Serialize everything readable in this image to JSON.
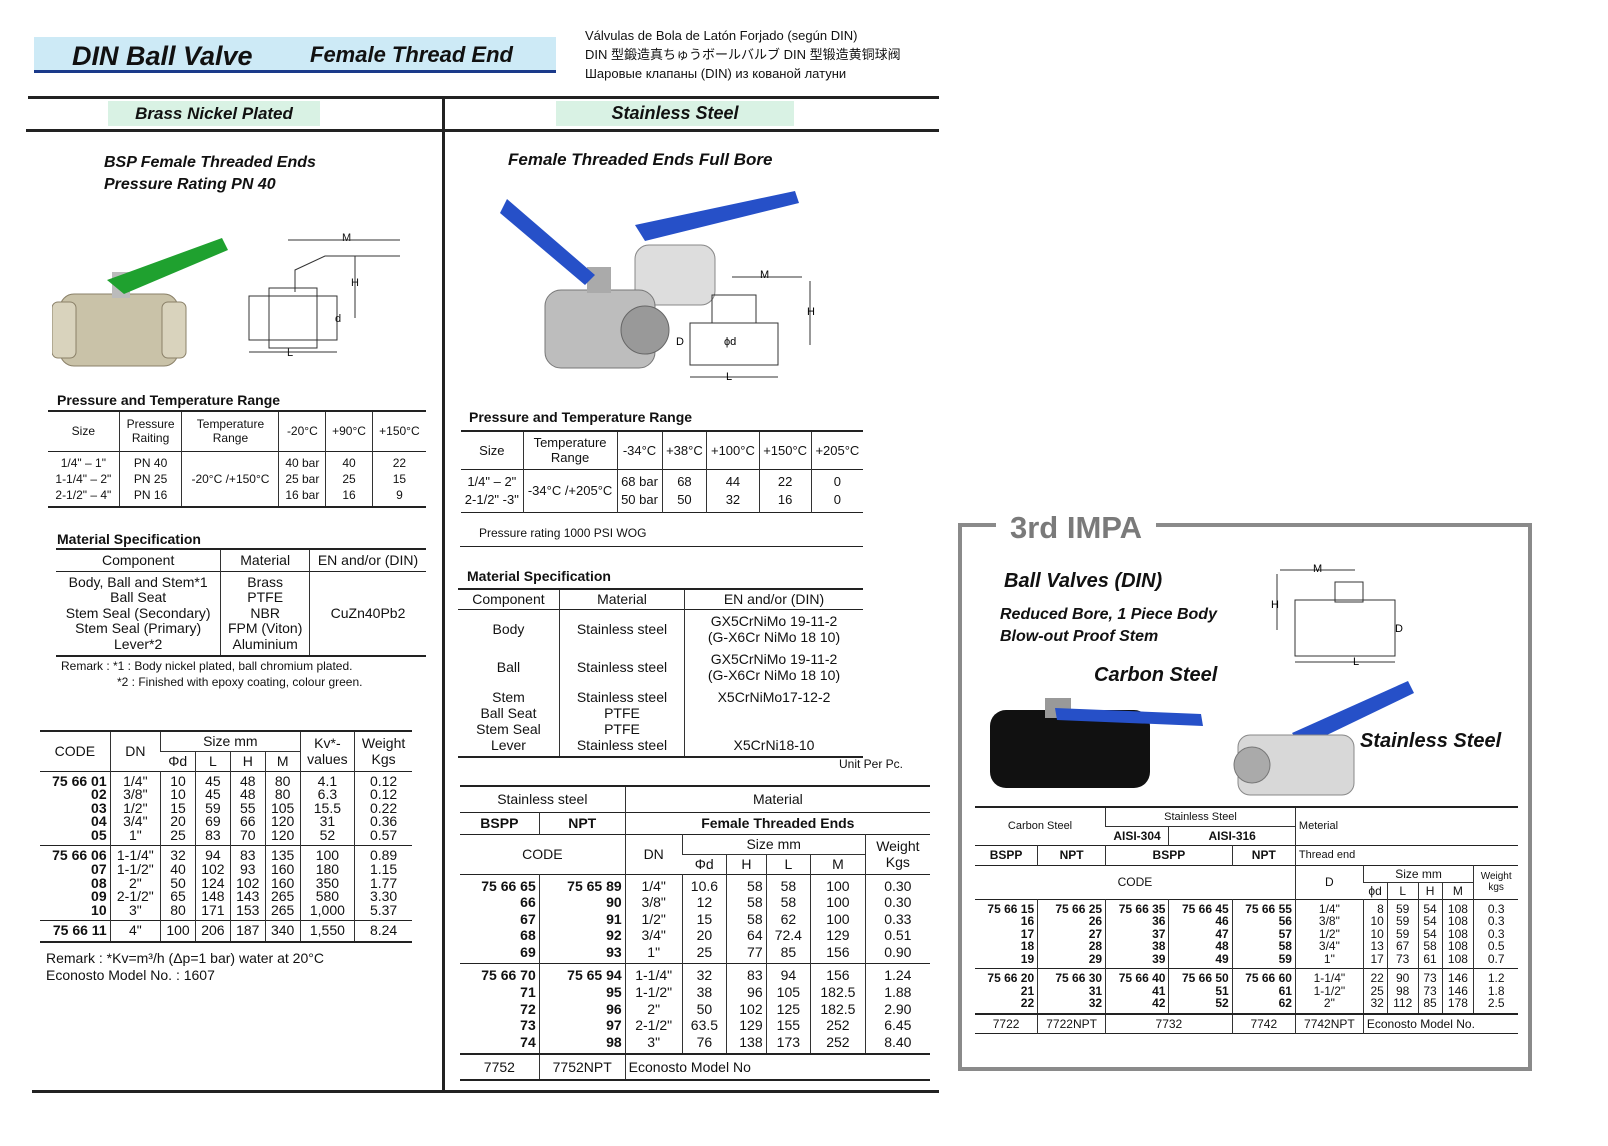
{
  "header": {
    "title": "DIN Ball Valve",
    "subtitle": "Female Thread End",
    "lang_es": "Válvulas de Bola de Latón Forjado (según DIN)",
    "lang_jp": "DIN 型鍛造真ちゅうボールバルブ  DIN 型锻造黄铜球阀",
    "lang_ru": "Шаровые клапаны (DIN) из кованой латуни",
    "accent": "#1a3a8a",
    "title_bg": "#cdeaf6"
  },
  "brass": {
    "section": "Brass Nickel Plated",
    "heading1": "BSP Female Threaded Ends",
    "heading2": "Pressure Rating PN 40",
    "dims": {
      "m": "M",
      "h": "H",
      "d": "d",
      "l": "L"
    },
    "pt_title": "Pressure and Temperature Range",
    "pt_headers": [
      "Size",
      "Pressure\nRaiting",
      "Temperature\nRange",
      "-20°C",
      "+90°C",
      "+150°C"
    ],
    "pt_rows": [
      [
        "1/4\" – 1\"\n1-1/4\" – 2\"\n2-1/2\" – 4\"",
        "PN 40\nPN 25\nPN 16",
        "-20°C /+150°C",
        "40 bar\n25 bar\n16 bar",
        "40\n25\n16",
        "22\n15\n9"
      ]
    ],
    "ms_title": "Material Specification",
    "ms_headers": [
      "Component",
      "Material",
      "EN and/or (DIN)"
    ],
    "ms_rows": [
      [
        "Body, Ball and Stem*1\nBall Seat\nStem Seal (Secondary)\nStem Seal (Primary)\nLever*2",
        "Brass\nPTFE\nNBR\nFPM (Viton)\nAluminium",
        "CuZn40Pb2"
      ]
    ],
    "remark1": "Remark : *1 : Body nickel plated, ball chromium plated.",
    "remark2": "*2 : Finished with epoxy coating, colour green.",
    "code_headers": {
      "code": "CODE",
      "dn": "DN",
      "size": "Size mm",
      "d": "Φd",
      "l": "L",
      "h": "H",
      "m": "M",
      "kv": "Kv*-\nvalues",
      "weight": "Weight\nKgs"
    },
    "code_groups": [
      [
        [
          "75 66 01\n02\n03\n04\n05",
          "1/4\"\n3/8\"\n1/2\"\n3/4\"\n1\"",
          "10\n10\n15\n20\n25",
          "45\n45\n59\n69\n83",
          "48\n48\n55\n66\n70",
          "80\n80\n105\n120\n120",
          "4.1\n6.3\n15.5\n31\n52",
          "0.12\n0.12\n0.22\n0.36\n0.57"
        ]
      ],
      [
        [
          "75 66 06\n07\n08\n09\n10",
          "1-1/4\"\n1-1/2\"\n2\"\n2-1/2\"\n3\"",
          "32\n40\n50\n65\n80",
          "94\n102\n124\n148\n171",
          "83\n93\n102\n143\n153",
          "135\n160\n160\n265\n265",
          "100\n180\n350\n580\n1,000",
          "0.89\n1.15\n1.77\n3.30\n5.37"
        ]
      ],
      [
        [
          "75 66 11",
          "4\"",
          "100",
          "206",
          "187",
          "340",
          "1,550",
          "8.24"
        ]
      ]
    ],
    "remark3": "Remark : *Kv=m³/h (Δp=1 bar) water at 20°C",
    "model": "Econosto Model No. : 1607"
  },
  "ss": {
    "section": "Stainless Steel",
    "heading": "Female Threaded Ends Full Bore",
    "dims": {
      "m": "M",
      "h": "H",
      "d": "D",
      "phid": "ϕd",
      "l": "L"
    },
    "pt_title": "Pressure and Temperature Range",
    "pt_headers": [
      "Size",
      "Temperature\nRange",
      "-34°C",
      "+38°C",
      "+100°C",
      "+150°C",
      "+205°C"
    ],
    "pt_rows": [
      [
        "1/4\" – 2\"\n2-1/2\" -3\"",
        "-34°C /+205°C",
        "68 bar\n50 bar",
        "68\n50",
        "44\n32",
        "22\n16",
        "0\n0"
      ]
    ],
    "pt_note": "Pressure rating 1000 PSI WOG",
    "ms_title": "Material Specification",
    "ms_headers": [
      "Component",
      "Material",
      "EN and/or (DIN)"
    ],
    "ms_rows": [
      [
        "Body",
        "Stainless steel",
        "GX5CrNiMo 19-11-2\n(G-X6Cr NiMo 18 10)"
      ],
      [
        "Ball",
        "Stainless steel",
        "GX5CrNiMo 19-11-2\n(G-X6Cr NiMo 18 10)"
      ],
      [
        "Stem\nBall Seat\nStem Seal\nLever",
        "Stainless steel\nPTFE\nPTFE\nStainless steel",
        "X5CrNiMo17-12-2\n\n\nX5CrNi18-10"
      ]
    ],
    "unit": "Unit Per Pc.",
    "h": {
      "ss": "Stainless steel",
      "material": "Material",
      "bspp": "BSPP",
      "npt": "NPT",
      "fte": "Female Threaded Ends",
      "code": "CODE",
      "dn": "DN",
      "size": "Size mm",
      "d": "Φd",
      "hh": "H",
      "l": "L",
      "m": "M",
      "weight": "Weight\nKgs"
    },
    "code_groups": [
      [
        [
          "75 66 65\n66\n67\n68\n69",
          "75 65 89\n90\n91\n92\n93",
          "1/4\"\n3/8\"\n1/2\"\n3/4\"\n1\"",
          "10.6\n12\n15\n20\n25",
          "58\n58\n58\n64\n77",
          "58\n58\n62\n72.4\n85",
          "100\n100\n100\n129\n156",
          "0.30\n0.30\n0.33\n0.51\n0.90"
        ]
      ],
      [
        [
          "75 66 70\n71\n72\n73\n74",
          "75 65 94\n95\n96\n97\n98",
          "1-1/4\"\n1-1/2\"\n2\"\n2-1/2\"\n3\"",
          "32\n38\n50\n63.5\n76",
          "83\n96\n102\n129\n138",
          "94\n105\n125\n155\n173",
          "156\n182.5\n182.5\n252\n252",
          "1.24\n1.88\n2.90\n6.45\n8.40"
        ]
      ]
    ],
    "models": [
      "7752",
      "7752NPT",
      "Econosto Model No"
    ]
  },
  "impa": {
    "badge": "3rd IMPA",
    "heading": "Ball Valves (DIN)",
    "sub1": "Reduced Bore, 1 Piece Body",
    "sub2": "Blow-out Proof Stem",
    "carbon": "Carbon Steel",
    "stainless": "Stainless Steel",
    "dims": {
      "m": "M",
      "h": "H",
      "d": "D",
      "l": "L"
    },
    "h": {
      "cs": "Carbon Steel",
      "ss": "Stainless Steel",
      "a304": "AISI-304",
      "a316": "AISI-316",
      "material": "Meterial",
      "bspp1": "BSPP",
      "npt1": "NPT",
      "bspp2": "BSPP",
      "npt2": "NPT",
      "thread": "Thread end",
      "code": "CODE",
      "d": "D",
      "size": "Size mm",
      "phid": "ϕd",
      "l": "L",
      "hh": "H",
      "m": "M",
      "weight": "Weight\nkgs"
    },
    "code_groups": [
      [
        [
          "75 66 15\n16\n17\n18\n19",
          "75 66 25\n26\n27\n28\n29",
          "75 66 35\n36\n37\n38\n39",
          "75 66 45\n46\n47\n48\n49",
          "75 66 55\n56\n57\n58\n59",
          "1/4\"\n3/8\"\n1/2\"\n3/4\"\n1\"",
          "8\n10\n10\n13\n17",
          "59\n59\n59\n67\n73",
          "54\n54\n54\n58\n61",
          "108\n108\n108\n108\n108",
          "0.3\n0.3\n0.3\n0.5\n0.7"
        ]
      ],
      [
        [
          "75 66 20\n21\n22",
          "75 66 30\n31\n32",
          "75 66 40\n41\n42",
          "75 66 50\n51\n52",
          "75 66 60\n61\n62",
          "1-1/4\"\n1-1/2\"\n2\"",
          "22\n25\n32",
          "90\n98\n112",
          "73\n73\n85",
          "146\n146\n178",
          "1.2\n1.8\n2.5"
        ]
      ]
    ],
    "models": [
      "7722",
      "7722NPT",
      "7732",
      "7742",
      "7742NPT",
      "Econosto Model No."
    ]
  },
  "colors": {
    "section_bg": "#d9f2e4",
    "green_lever": "#1fa12f",
    "blue_lever": "#2650c8",
    "impa_border": "#8a8a8a"
  }
}
